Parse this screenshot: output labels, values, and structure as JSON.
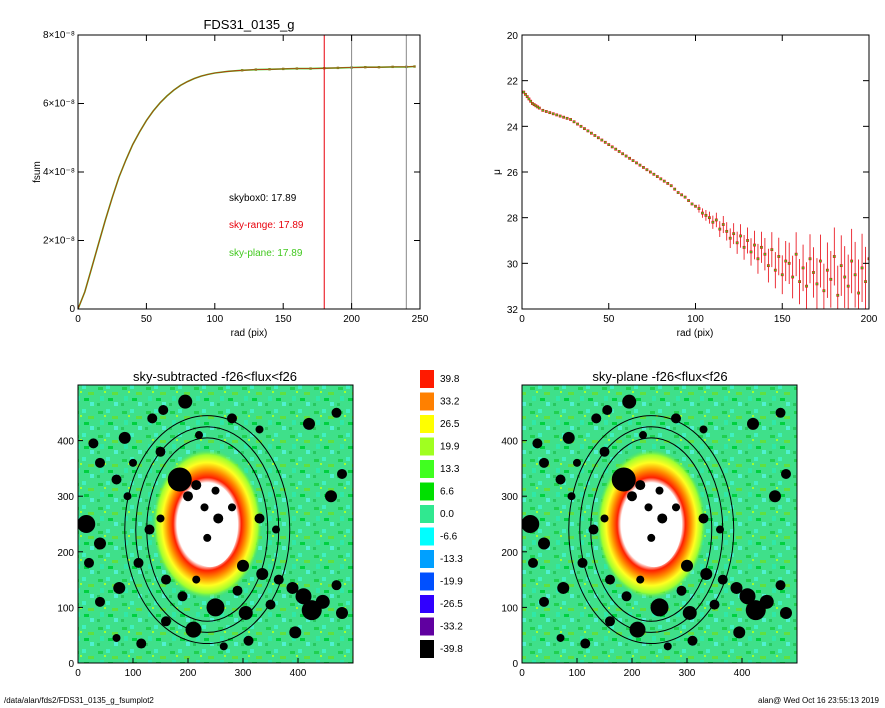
{
  "footer": {
    "path": "/data/alan/fds2/FDS31_0135_g_fsumplot2",
    "user_stamp": "alan@  Wed Oct 16 23:55:13 2019"
  },
  "colors": {
    "red": "#e8000b",
    "green": "#41c81e",
    "olive": "#8c7a1e",
    "black": "#000000"
  },
  "chart_data": [
    {
      "type": "line",
      "title": "FDS31_0135_g",
      "xlabel": "rad (pix)",
      "ylabel": "fsum",
      "xlim": [
        0,
        250
      ],
      "ylim": [
        0,
        8e-08
      ],
      "xticks": [
        "0",
        "50",
        "100",
        "150",
        "200",
        "250"
      ],
      "yticks": [
        "0",
        "2×10⁻⁸",
        "4×10⁻⁸",
        "6×10⁻⁸",
        "8×10⁻⁸"
      ],
      "vlines": [
        {
          "x": 180,
          "color": "red"
        },
        {
          "x": 200,
          "color": "gray"
        },
        {
          "x": 240,
          "color": "gray"
        }
      ],
      "annotations": [
        {
          "text": "skybox0: 17.89",
          "color": "black"
        },
        {
          "text": "sky-range: 17.89",
          "color": "red"
        },
        {
          "text": "sky-plane: 17.89",
          "color": "green"
        }
      ],
      "series": [
        {
          "x": [
            0,
            5,
            10,
            15,
            20,
            25,
            30,
            35,
            40,
            45,
            50,
            55,
            60,
            65,
            70,
            75,
            80,
            85,
            90,
            95,
            100,
            110,
            120,
            130,
            140,
            150,
            160,
            170,
            180,
            190,
            200,
            210,
            220,
            230,
            240,
            246
          ],
          "values": [
            0,
            5e-09,
            1.2e-08,
            1.9e-08,
            2.6e-08,
            3.25e-08,
            3.85e-08,
            4.35e-08,
            4.8e-08,
            5.17e-08,
            5.5e-08,
            5.78e-08,
            6.02e-08,
            6.22e-08,
            6.39e-08,
            6.53e-08,
            6.64e-08,
            6.73e-08,
            6.8e-08,
            6.85e-08,
            6.89e-08,
            6.94e-08,
            6.97e-08,
            6.99e-08,
            7e-08,
            7.01e-08,
            7.02e-08,
            7.02e-08,
            7.03e-08,
            7.04e-08,
            7.05e-08,
            7.06e-08,
            7.06e-08,
            7.07e-08,
            7.07e-08,
            7.08e-08
          ]
        }
      ]
    },
    {
      "type": "scatter",
      "title": "",
      "xlabel": "rad (pix)",
      "ylabel": "μ",
      "xlim": [
        0,
        200
      ],
      "ylim": [
        32,
        20
      ],
      "xticks": [
        "0",
        "50",
        "100",
        "150",
        "200"
      ],
      "yticks": [
        "20",
        "22",
        "24",
        "26",
        "28",
        "30",
        "32"
      ],
      "series": [
        {
          "x": [
            1,
            2,
            3,
            4,
            5,
            6,
            7,
            8,
            9,
            10,
            12,
            14,
            16,
            18,
            20,
            22,
            24,
            26,
            28,
            30,
            32,
            34,
            36,
            38,
            40,
            42,
            44,
            46,
            48,
            50,
            52,
            54,
            56,
            58,
            60,
            62,
            64,
            66,
            68,
            70,
            72,
            74,
            76,
            78,
            80,
            82,
            84,
            86,
            88,
            90,
            92,
            94,
            96,
            98,
            100,
            102,
            104,
            106,
            108,
            110,
            112,
            114,
            116,
            118,
            120,
            122,
            124,
            126,
            128,
            130,
            132,
            134,
            136,
            138,
            140,
            142,
            144,
            146,
            148,
            150,
            152,
            154,
            156,
            158,
            160,
            162,
            164,
            166,
            168,
            170,
            172,
            174,
            176,
            178,
            180,
            182,
            184,
            186,
            188,
            190,
            192,
            194,
            196,
            198,
            200
          ],
          "values": [
            22.5,
            22.6,
            22.7,
            22.8,
            22.9,
            23.0,
            23.05,
            23.1,
            23.15,
            23.2,
            23.3,
            23.35,
            23.4,
            23.45,
            23.5,
            23.55,
            23.6,
            23.65,
            23.7,
            23.8,
            23.9,
            24.0,
            24.1,
            24.2,
            24.3,
            24.4,
            24.5,
            24.6,
            24.7,
            24.8,
            24.9,
            25.0,
            25.1,
            25.2,
            25.3,
            25.4,
            25.5,
            25.6,
            25.7,
            25.8,
            25.9,
            26.0,
            26.1,
            26.2,
            26.3,
            26.4,
            26.5,
            26.6,
            26.75,
            26.9,
            27.0,
            27.1,
            27.25,
            27.4,
            27.5,
            27.6,
            27.8,
            27.9,
            28.0,
            28.2,
            28.1,
            28.5,
            28.3,
            28.6,
            28.9,
            28.7,
            29.1,
            28.8,
            29.3,
            29.0,
            29.5,
            29.2,
            29.8,
            29.3,
            29.6,
            30.1,
            29.4,
            30.3,
            29.7,
            30.5,
            29.9,
            30.0,
            30.6,
            29.6,
            30.8,
            30.2,
            31.0,
            29.8,
            30.4,
            30.9,
            29.9,
            31.2,
            30.3,
            30.7,
            29.7,
            31.4,
            30.1,
            30.6,
            31.0,
            29.9,
            30.5,
            31.3,
            30.2,
            30.8,
            29.8
          ]
        }
      ]
    },
    {
      "type": "heatmap",
      "title": "sky-subtracted -f26<flux<f26",
      "xlim": [
        0,
        500
      ],
      "ylim": [
        0,
        500
      ],
      "xticks": [
        "0",
        "100",
        "200",
        "300",
        "400"
      ],
      "yticks": [
        "0",
        "100",
        "200",
        "300",
        "400"
      ]
    },
    {
      "type": "heatmap",
      "title": "sky-plane -f26<flux<f26",
      "xlim": [
        0,
        500
      ],
      "ylim": [
        0,
        500
      ],
      "xticks": [
        "0",
        "100",
        "200",
        "300",
        "400"
      ],
      "yticks": [
        "0",
        "100",
        "200",
        "300",
        "400"
      ]
    }
  ],
  "colorbar": {
    "labels": [
      "39.8",
      "33.2",
      "26.5",
      "19.9",
      "13.3",
      "6.6",
      "0.0",
      "-6.6",
      "-13.3",
      "-19.9",
      "-26.5",
      "-33.2",
      "-39.8"
    ],
    "colors": [
      "#ff1a00",
      "#ff8000",
      "#ffff00",
      "#a0ff20",
      "#40ff20",
      "#00e000",
      "#30e890",
      "#00ffff",
      "#00a0ff",
      "#0050ff",
      "#3000ff",
      "#6000a0",
      "#000000"
    ]
  },
  "sources": [
    [
      28,
      395
    ],
    [
      85,
      405
    ],
    [
      135,
      440
    ],
    [
      155,
      455
    ],
    [
      195,
      470
    ],
    [
      220,
      410
    ],
    [
      15,
      250
    ],
    [
      40,
      215
    ],
    [
      20,
      180
    ],
    [
      70,
      330
    ],
    [
      90,
      300
    ],
    [
      150,
      380
    ],
    [
      185,
      330
    ],
    [
      215,
      320
    ],
    [
      250,
      310
    ],
    [
      280,
      280
    ],
    [
      330,
      260
    ],
    [
      360,
      240
    ],
    [
      300,
      175
    ],
    [
      335,
      160
    ],
    [
      365,
      150
    ],
    [
      390,
      135
    ],
    [
      410,
      120
    ],
    [
      425,
      95
    ],
    [
      445,
      110
    ],
    [
      470,
      140
    ],
    [
      480,
      90
    ],
    [
      395,
      55
    ],
    [
      310,
      40
    ],
    [
      265,
      30
    ],
    [
      210,
      60
    ],
    [
      160,
      75
    ],
    [
      115,
      35
    ],
    [
      70,
      45
    ],
    [
      40,
      110
    ],
    [
      75,
      135
    ],
    [
      190,
      120
    ],
    [
      215,
      150
    ],
    [
      250,
      100
    ],
    [
      305,
      90
    ],
    [
      350,
      105
    ],
    [
      130,
      240
    ],
    [
      150,
      260
    ],
    [
      460,
      300
    ],
    [
      480,
      340
    ],
    [
      470,
      450
    ],
    [
      40,
      360
    ],
    [
      100,
      360
    ],
    [
      230,
      280
    ],
    [
      255,
      260
    ],
    [
      235,
      225
    ],
    [
      200,
      300
    ],
    [
      330,
      420
    ],
    [
      280,
      440
    ],
    [
      420,
      430
    ],
    [
      110,
      180
    ],
    [
      160,
      150
    ],
    [
      290,
      130
    ]
  ],
  "source_sizes": [
    5,
    6,
    5,
    5,
    7,
    4,
    9,
    6,
    5,
    5,
    4,
    5,
    12,
    5,
    4,
    4,
    5,
    4,
    6,
    6,
    5,
    6,
    8,
    10,
    7,
    5,
    6,
    6,
    5,
    4,
    8,
    5,
    5,
    4,
    5,
    6,
    5,
    4,
    9,
    7,
    5,
    5,
    4,
    6,
    5,
    5,
    5,
    4,
    4,
    5,
    4,
    5,
    4,
    5,
    6,
    5,
    5,
    5
  ]
}
